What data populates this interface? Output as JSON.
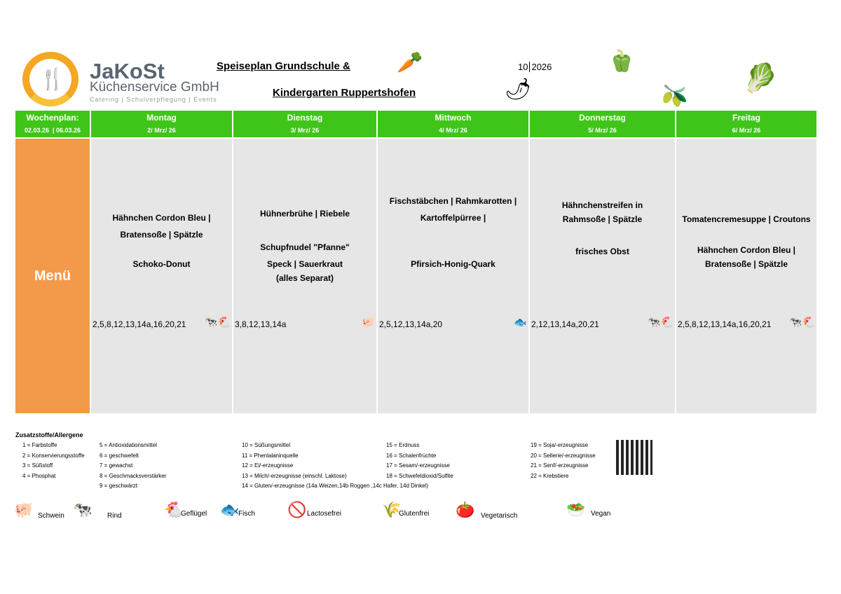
{
  "logo": {
    "name": "JaKoSt",
    "subtitle": "Küchenservice GmbH",
    "tagline": "Catering | Schulverpflegung | Events"
  },
  "title": {
    "line1": "Speiseplan Grundschule & ",
    "line2": "Kindergarten Ruppertshofen"
  },
  "week": {
    "number": "10",
    "year": "2026"
  },
  "header": {
    "label": "Wochenplan:",
    "from": "02.03.26",
    "to": "06.03.26"
  },
  "menu_label": "Menü",
  "days": [
    {
      "name": "Montag",
      "date": "2/ Mrz/ 26",
      "lines": [
        "Hähnchen Cordon Bleu |",
        "Bratensoße | Spätzle",
        "",
        "Schoko-Donut"
      ],
      "codes": "2,5,8,12,13,14a,16,20,21",
      "icons": [
        "cow-icon",
        "chicken-icon"
      ]
    },
    {
      "name": "Dienstag",
      "date": "3/ Mrz/ 26",
      "lines": [
        "Hühnerbrühe | Riebele",
        "",
        "Schupfnudel \"Pfanne\"",
        "Speck | Sauerkraut",
        "(alles Separat)"
      ],
      "codes": "3,8,12,13,14a",
      "icons": [
        "pig-icon"
      ]
    },
    {
      "name": "Mittwoch",
      "date": "4/ Mrz/ 26",
      "lines": [
        "Fischstäbchen | Rahmkarotten |",
        "Kartoffelpürree |",
        "",
        "",
        "Pfirsich-Honig-Quark"
      ],
      "codes": "2,5,12,13,14a,20",
      "icons": [
        "fish-icon"
      ]
    },
    {
      "name": "Donnerstag",
      "date": "5/ Mrz/ 26",
      "lines": [
        "Hähnchenstreifen in",
        "Rahmsoße | Spätzle",
        "",
        "frisches Obst"
      ],
      "codes": "2,12,13,14a,20,21",
      "icons": [
        "cow-icon",
        "chicken-icon"
      ]
    },
    {
      "name": "Freitag",
      "date": "6/ Mrz/ 26",
      "lines": [
        "Tomatencremesuppe | Croutons",
        "",
        "Hähnchen Cordon Bleu |",
        "Bratensoße | Spätzle"
      ],
      "codes": "2,5,8,12,13,14a,16,20,21",
      "icons": [
        "cow-icon",
        "chicken-icon"
      ]
    }
  ],
  "additives": {
    "title": "Zusatzstoffe/Allergene",
    "columns": [
      [
        "1 = Farbstoffe",
        "2 = Konservierungsstoffe",
        "3 = Süßstoff",
        "4 = Phosphat"
      ],
      [
        "5 = Antioxidationsmittel",
        "6 = geschwefelt",
        "7 = gewachst",
        "8 = Geschmacksverstärker",
        "9 = geschwärzt"
      ],
      [
        "10 = Süßungsmittel",
        "11 = Phenlalaninquelle",
        "12 = Ei/-erzeugnisse",
        "13 = Milch/-erzeugnisse (einschl. Laktose)",
        "14 = Gluten/-erzeugnisse (14a Weizen,14b Roggen ,14c Hafer, 14d Dinkel)"
      ],
      [
        "15 = Erdnuss",
        "16 = Schalenfrüchte",
        "17 = Sesam/-erzeugnisse",
        "18 = Schwefeldioxid/Sulfite"
      ],
      [
        "19 = Soja/-erzeugnisse",
        "20 = Sellerie/-erzeugnisse",
        "21 = Senf/-erzeugnisse",
        "22 = Krebstiere"
      ]
    ]
  },
  "legend": [
    {
      "icon": "pig-icon",
      "label": "Schwein"
    },
    {
      "icon": "cow-icon",
      "label": "Rind"
    },
    {
      "icon": "chicken-icon",
      "label": "Geflügel"
    },
    {
      "icon": "fish-icon",
      "label": "Fisch"
    },
    {
      "icon": "no-milk-icon",
      "label": "Lactosefrei"
    },
    {
      "icon": "no-wheat-icon",
      "label": "Glutenfrei"
    },
    {
      "icon": "vegetable-icon",
      "label": "Vegetarisch"
    },
    {
      "icon": "leaf-bowl-icon",
      "label": "Vegan"
    }
  ],
  "colors": {
    "green": "#3fc51a",
    "orange": "#f39a4a",
    "cell": "#e6e6e6"
  }
}
